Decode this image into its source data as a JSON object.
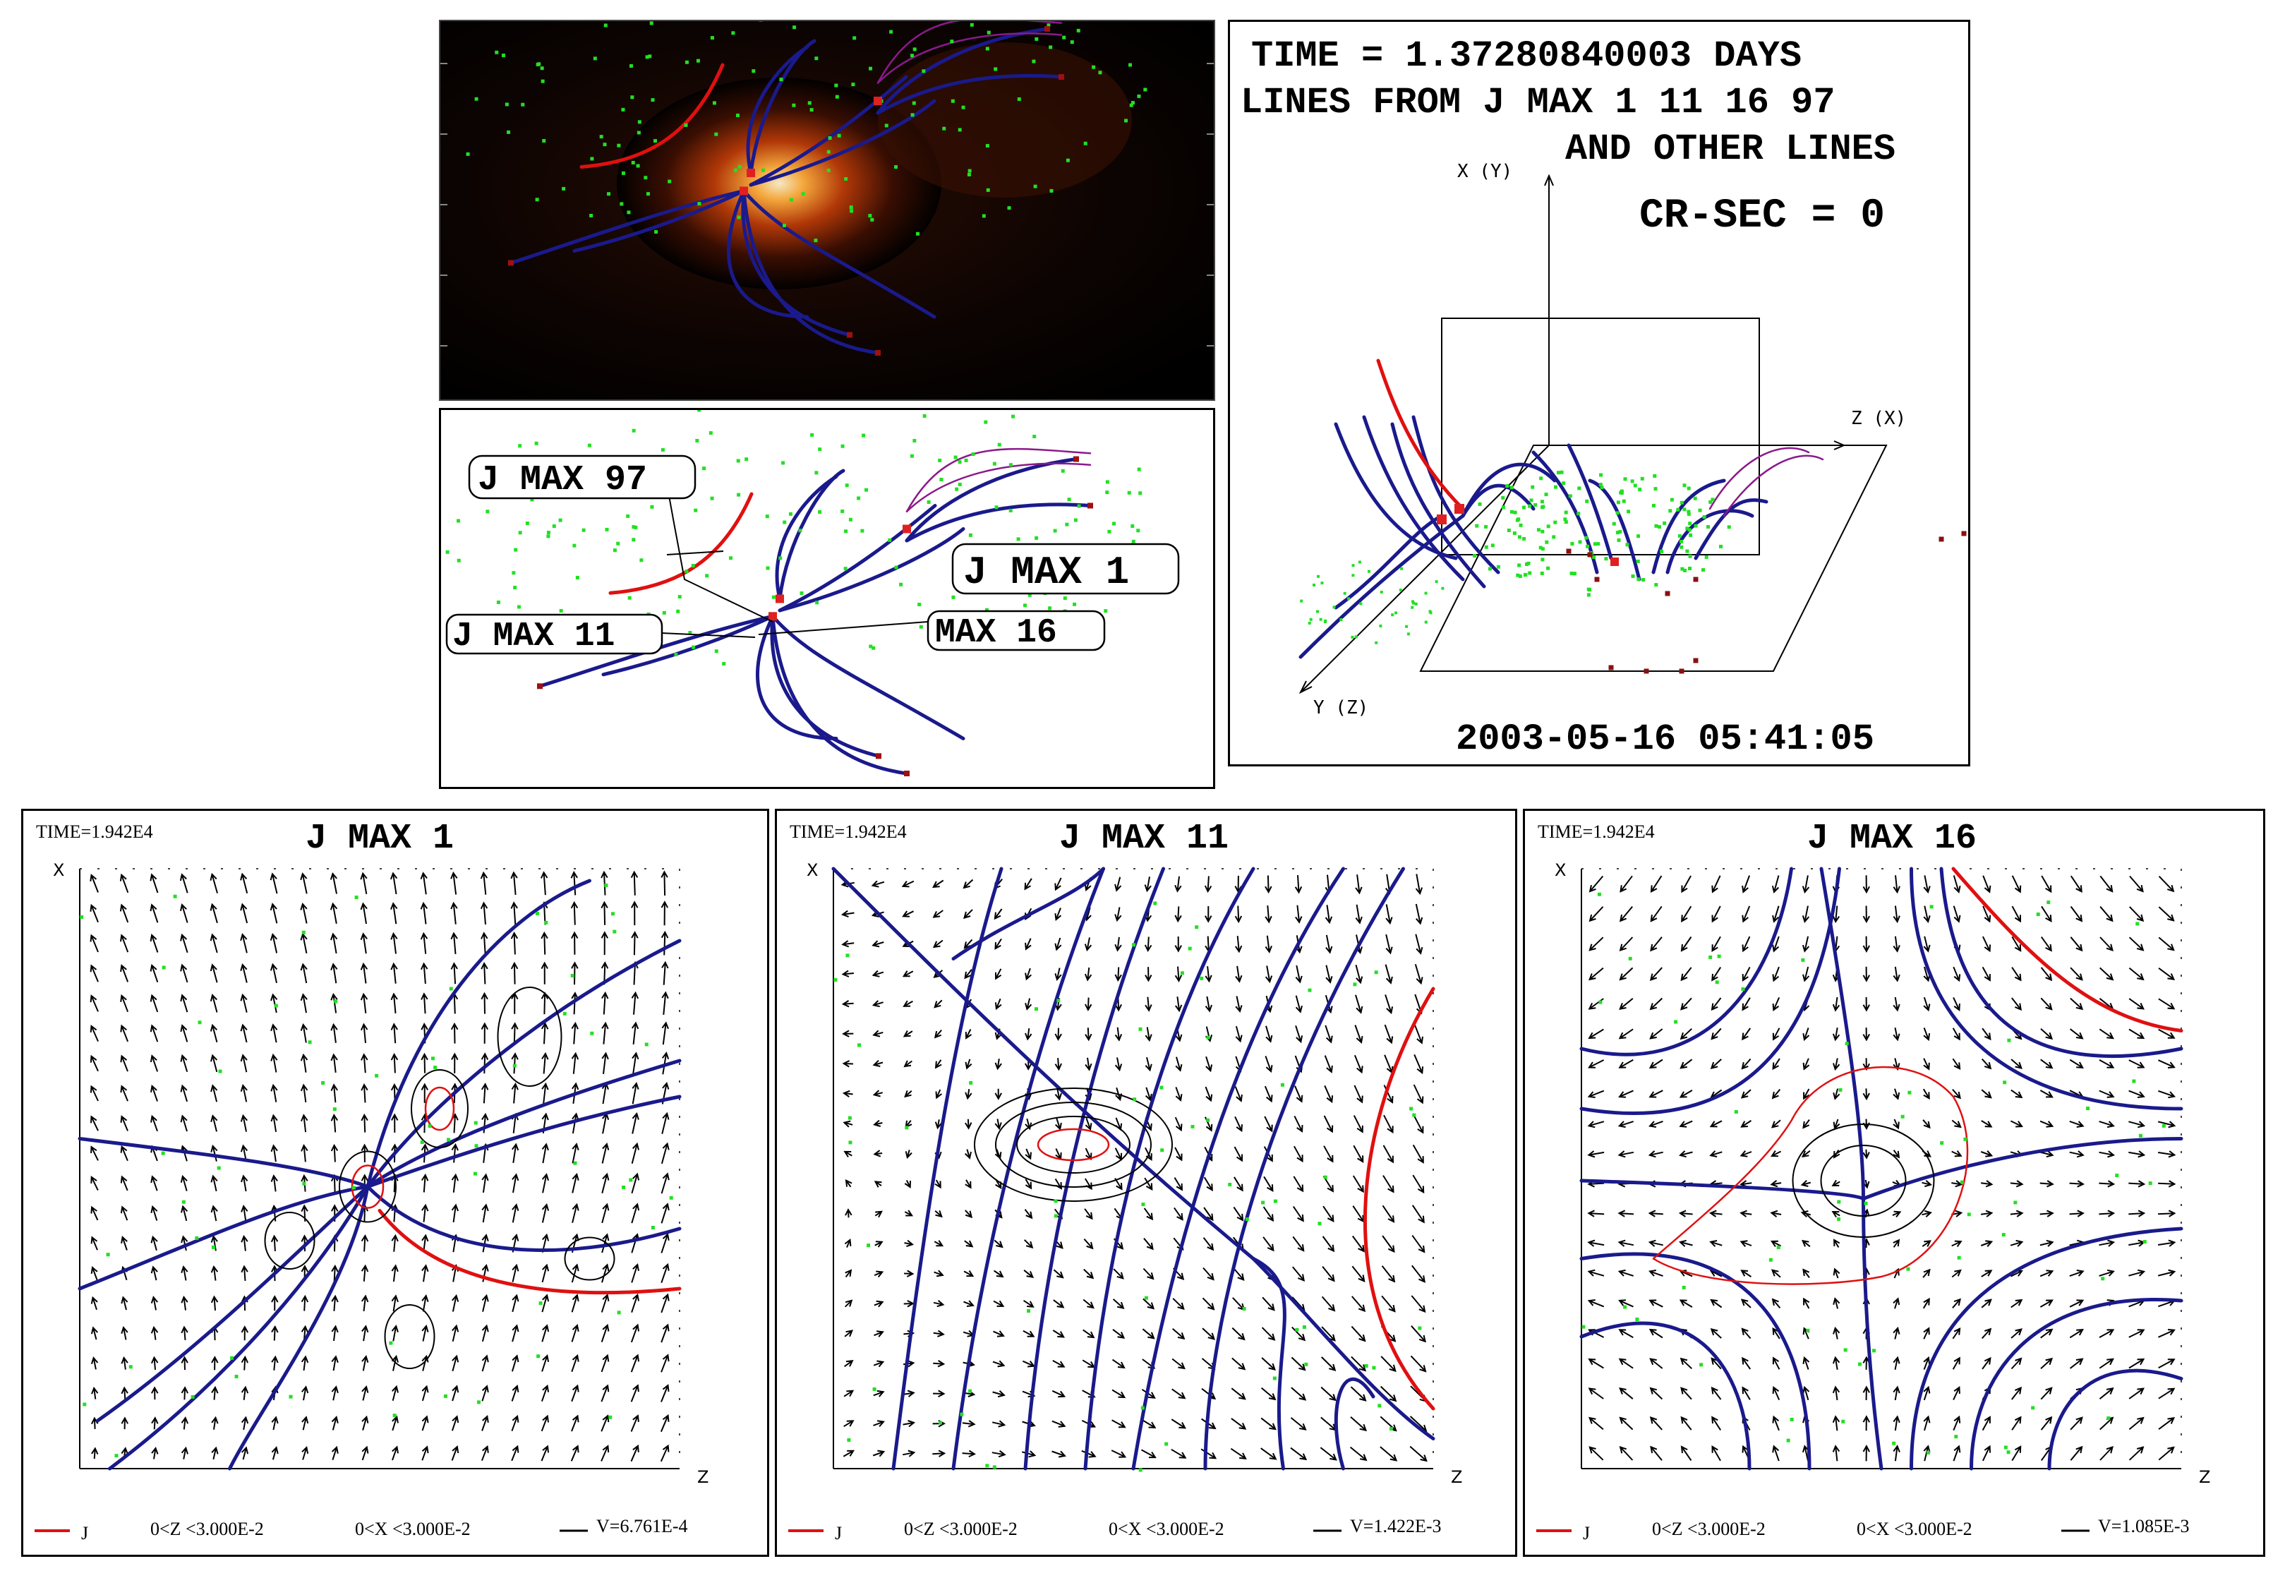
{
  "top_right": {
    "time_line": "TIME = 1.37280840003 DAYS",
    "lines_line": "LINES FROM J MAX 1 11 16 97",
    "other_line": "AND OTHER LINES",
    "crsec": "CR-SEC = 0",
    "axis_x": "X (Y)",
    "axis_z": "Z (X)",
    "axis_y": "Y (Z)",
    "timestamp": "2003-05-16 05:41:05"
  },
  "middle_left": {
    "labels": [
      "J MAX 97",
      "J MAX 1",
      "J MAX 11",
      "MAX 16"
    ]
  },
  "bottom_panels": [
    {
      "time": "TIME=1.942E4",
      "title": "J MAX 1",
      "x_axis": "X",
      "z_axis": "Z",
      "legend_j": "J",
      "range_z": "0<Z <3.000E-2",
      "range_x": "0<X <3.000E-2",
      "v_value": "V=6.761E-4"
    },
    {
      "time": "TIME=1.942E4",
      "title": "J MAX 11",
      "x_axis": "X",
      "z_axis": "Z",
      "legend_j": "J",
      "range_z": "0<Z <3.000E-2",
      "range_x": "0<X <3.000E-2",
      "v_value": "V=1.422E-3"
    },
    {
      "time": "TIME=1.942E4",
      "title": "J MAX 16",
      "x_axis": "X",
      "z_axis": "Z",
      "legend_j": "J",
      "range_z": "0<Z <3.000E-2",
      "range_x": "0<X <3.000E-2",
      "v_value": "V=1.085E-3"
    }
  ],
  "colors": {
    "field_line": "#1a1a8c",
    "current_line": "#e01010",
    "particle": "#22e022",
    "purple_line": "#8a1a8a",
    "marker": "#e02020"
  }
}
